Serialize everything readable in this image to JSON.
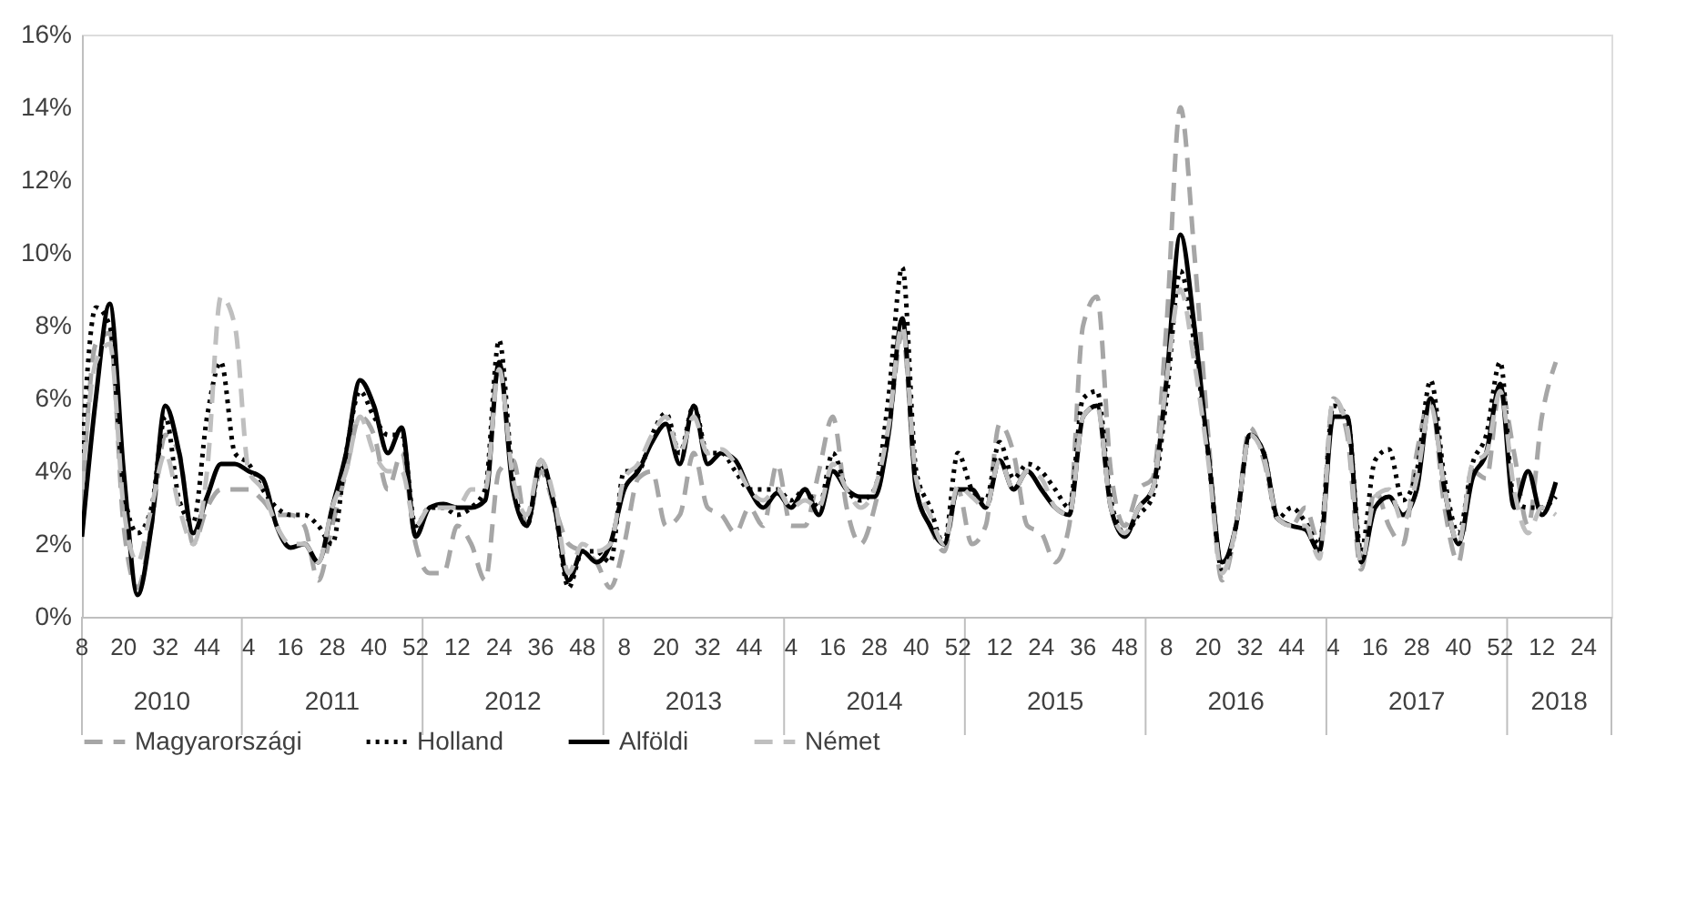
{
  "chart_data": {
    "type": "line",
    "categories": [
      "8",
      null,
      null,
      "20",
      null,
      null,
      "32",
      null,
      null,
      "44",
      null,
      null,
      "4",
      null,
      null,
      "16",
      null,
      null,
      "28",
      null,
      null,
      "40",
      null,
      null,
      "52",
      null,
      null,
      "12",
      null,
      null,
      "24",
      null,
      null,
      "36",
      null,
      null,
      "48",
      null,
      null,
      "8",
      null,
      null,
      "20",
      null,
      null,
      "32",
      null,
      null,
      "44",
      null,
      null,
      "4",
      null,
      null,
      "16",
      null,
      null,
      "28",
      null,
      null,
      "40",
      null,
      null,
      "52",
      null,
      null,
      "12",
      null,
      null,
      "24",
      null,
      null,
      "36",
      null,
      null,
      "48",
      null,
      null,
      "8",
      null,
      null,
      "20",
      null,
      null,
      "32",
      null,
      null,
      "44",
      null,
      null,
      "4",
      null,
      null,
      "16",
      null,
      null,
      "28",
      null,
      null,
      "40",
      null,
      null,
      "52",
      null,
      null,
      "12",
      null,
      null,
      "24",
      null,
      null
    ],
    "annotations": [
      "2010",
      "2011",
      "2012",
      "2013",
      "2014",
      "2015",
      "2016",
      "2017",
      "2018"
    ],
    "ylim": [
      0,
      16
    ],
    "yticks": [
      {
        "value": 0,
        "label": "0%"
      },
      {
        "value": 2,
        "label": "2%"
      },
      {
        "value": 4,
        "label": "4%"
      },
      {
        "value": 6,
        "label": "6%"
      },
      {
        "value": 8,
        "label": "8%"
      },
      {
        "value": 10,
        "label": "10%"
      },
      {
        "value": 12,
        "label": "12%"
      },
      {
        "value": 14,
        "label": "14%"
      },
      {
        "value": 16,
        "label": "16%"
      }
    ],
    "grid": false,
    "legend": "bottom",
    "series": [
      {
        "name": "Magyarországi",
        "color": "#a6a6a6",
        "line_style": "dashed",
        "values": [
          3.0,
          7.5,
          7.8,
          2.5,
          0.8,
          2.5,
          5.0,
          4.5,
          2.0,
          3.0,
          3.5,
          3.5,
          3.5,
          3.2,
          2.8,
          2.8,
          2.5,
          1.0,
          2.5,
          4.0,
          5.5,
          5.0,
          3.5,
          4.5,
          2.0,
          1.2,
          1.2,
          2.5,
          2.0,
          1.0,
          4.0,
          4.3,
          2.5,
          4.0,
          3.0,
          2.0,
          1.8,
          1.5,
          0.8,
          2.0,
          3.8,
          4.0,
          2.5,
          2.8,
          4.5,
          3.0,
          2.8,
          2.3,
          3.0,
          2.5,
          4.2,
          2.5,
          2.5,
          4.0,
          5.5,
          3.0,
          2.0,
          3.0,
          5.0,
          7.8,
          3.5,
          2.5,
          1.8,
          3.5,
          2.0,
          2.5,
          5.3,
          4.5,
          2.5,
          2.3,
          1.5,
          2.5,
          8.0,
          8.8,
          4.0,
          2.5,
          3.5,
          3.8,
          8.0,
          14.0,
          10.0,
          5.0,
          1.0,
          2.5,
          5.2,
          4.3,
          2.7,
          2.5,
          3.0,
          2.0,
          6.0,
          5.0,
          1.3,
          3.5,
          2.5,
          2.0,
          4.5,
          6.0,
          3.0,
          1.5,
          4.0,
          3.8,
          6.3,
          4.5,
          2.5,
          5.5,
          7.0,
          null,
          null,
          null,
          null
        ]
      },
      {
        "name": "Holland",
        "color": "#000000",
        "line_style": "dotted",
        "values": [
          4.5,
          8.5,
          8.0,
          3.5,
          2.3,
          3.0,
          5.5,
          3.2,
          2.6,
          5.5,
          7.0,
          4.5,
          4.2,
          3.5,
          3.0,
          2.8,
          2.8,
          2.5,
          2.0,
          4.5,
          6.2,
          5.5,
          5.0,
          5.0,
          2.5,
          3.0,
          3.0,
          2.8,
          3.0,
          3.5,
          7.6,
          3.8,
          2.5,
          4.2,
          3.0,
          0.8,
          1.8,
          1.8,
          1.5,
          4.0,
          4.0,
          5.0,
          5.6,
          4.5,
          5.8,
          4.5,
          4.5,
          4.0,
          3.5,
          3.5,
          3.5,
          3.2,
          3.5,
          3.0,
          4.5,
          3.5,
          3.2,
          3.5,
          6.0,
          9.6,
          4.0,
          3.0,
          2.0,
          4.5,
          3.5,
          3.2,
          4.8,
          3.8,
          4.2,
          4.0,
          3.5,
          3.0,
          6.0,
          6.2,
          3.2,
          2.3,
          2.8,
          3.3,
          6.0,
          9.5,
          7.5,
          4.5,
          1.3,
          2.5,
          5.0,
          4.5,
          2.7,
          3.0,
          2.6,
          2.0,
          5.8,
          5.5,
          1.8,
          4.3,
          4.6,
          3.2,
          4.0,
          6.5,
          3.8,
          2.3,
          4.2,
          5.0,
          7.0,
          3.2,
          3.0,
          3.0,
          3.3,
          null,
          null,
          null,
          null
        ]
      },
      {
        "name": "Alföldi",
        "color": "#000000",
        "line_style": "solid",
        "values": [
          2.2,
          6.0,
          8.6,
          4.0,
          0.6,
          2.5,
          5.8,
          4.5,
          2.3,
          3.3,
          4.2,
          4.2,
          4.0,
          3.8,
          2.5,
          1.9,
          2.0,
          1.5,
          3.0,
          4.5,
          6.5,
          5.8,
          4.5,
          5.2,
          2.2,
          3.0,
          3.1,
          3.0,
          3.0,
          3.2,
          7.0,
          3.5,
          2.5,
          4.3,
          3.0,
          1.0,
          1.8,
          1.5,
          2.0,
          3.5,
          4.0,
          4.8,
          5.3,
          4.2,
          5.8,
          4.2,
          4.5,
          4.3,
          3.5,
          3.0,
          3.4,
          3.0,
          3.5,
          2.8,
          4.0,
          3.5,
          3.3,
          3.3,
          5.0,
          8.2,
          3.5,
          2.5,
          2.0,
          3.5,
          3.5,
          3.0,
          4.3,
          3.5,
          4.0,
          3.5,
          3.0,
          2.8,
          5.5,
          5.8,
          3.0,
          2.2,
          3.0,
          3.5,
          6.5,
          10.5,
          8.0,
          4.5,
          1.5,
          2.5,
          5.0,
          4.5,
          2.7,
          2.5,
          2.4,
          1.8,
          5.5,
          5.5,
          1.5,
          3.0,
          3.3,
          2.8,
          3.5,
          6.0,
          3.5,
          2.0,
          3.8,
          4.5,
          6.4,
          3.0,
          4.0,
          2.8,
          3.7,
          null,
          null,
          null,
          null
        ]
      },
      {
        "name": "Német",
        "color": "#bfbfbf",
        "line_style": "dashed",
        "values": [
          3.5,
          7.0,
          7.5,
          3.0,
          1.5,
          3.0,
          4.5,
          3.0,
          2.0,
          4.0,
          8.8,
          8.0,
          4.0,
          3.5,
          2.5,
          2.0,
          2.0,
          1.5,
          3.0,
          4.0,
          5.5,
          4.5,
          4.0,
          4.0,
          2.5,
          3.0,
          3.0,
          3.0,
          3.5,
          3.5,
          6.8,
          3.8,
          2.8,
          4.3,
          3.2,
          1.2,
          2.0,
          1.8,
          2.0,
          3.8,
          4.2,
          5.0,
          5.5,
          4.5,
          5.5,
          4.5,
          4.6,
          4.2,
          3.5,
          3.2,
          3.5,
          3.0,
          3.2,
          3.0,
          4.2,
          3.5,
          3.0,
          3.5,
          5.2,
          8.0,
          3.8,
          2.8,
          2.0,
          3.6,
          3.3,
          3.0,
          4.3,
          3.5,
          4.0,
          3.8,
          3.0,
          2.8,
          5.5,
          5.8,
          3.0,
          2.3,
          3.0,
          3.5,
          6.5,
          9.0,
          7.0,
          4.3,
          1.2,
          2.5,
          5.0,
          4.4,
          2.7,
          2.5,
          2.5,
          1.6,
          6.0,
          5.2,
          1.5,
          3.3,
          3.5,
          2.6,
          3.8,
          5.8,
          3.5,
          2.0,
          4.2,
          4.5,
          6.2,
          3.5,
          2.3,
          3.0,
          2.8,
          null,
          null,
          null,
          null
        ]
      }
    ]
  }
}
